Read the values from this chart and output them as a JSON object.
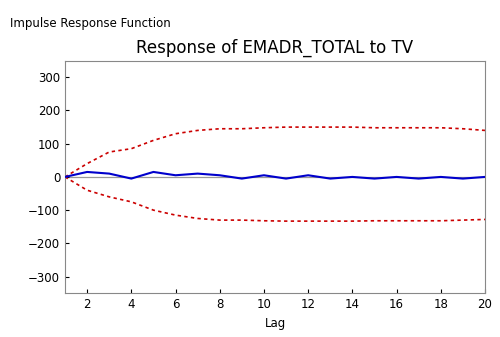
{
  "title": "Response of EMADR_TOTAL to TV",
  "ylabel": "Impulse Response Function",
  "xlabel": "Lag",
  "xlim": [
    1,
    20
  ],
  "ylim": [
    -350,
    350
  ],
  "yticks": [
    -300,
    -200,
    -100,
    0,
    100,
    200,
    300
  ],
  "xticks": [
    2,
    4,
    6,
    8,
    10,
    12,
    14,
    16,
    18,
    20
  ],
  "irf": [
    0,
    15,
    10,
    -5,
    15,
    5,
    10,
    5,
    -5,
    5,
    -5,
    5,
    -5,
    0,
    -5,
    0,
    -5,
    0,
    -5,
    0
  ],
  "upper": [
    0,
    40,
    75,
    85,
    110,
    130,
    140,
    145,
    145,
    148,
    150,
    150,
    150,
    150,
    148,
    148,
    148,
    148,
    145,
    140
  ],
  "lower": [
    0,
    -40,
    -60,
    -75,
    -100,
    -115,
    -125,
    -130,
    -130,
    -132,
    -133,
    -133,
    -133,
    -133,
    -132,
    -132,
    -132,
    -132,
    -130,
    -128
  ],
  "irf_color": "#0000cc",
  "se_color": "#cc0000",
  "zero_line_color": "#999999",
  "background_color": "#ffffff",
  "plot_bg_color": "#ffffff",
  "title_fontsize": 12,
  "label_fontsize": 8.5,
  "tick_fontsize": 8.5
}
